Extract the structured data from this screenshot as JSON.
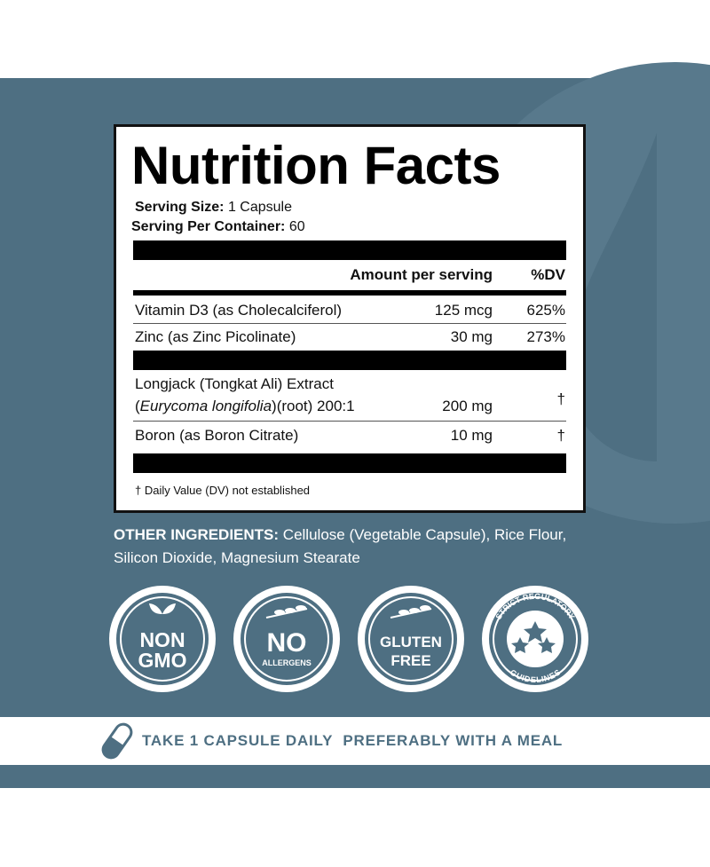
{
  "label": {
    "title": "Nutrition Facts",
    "serving_size_label": "Serving Size:",
    "serving_size": "1 Capsule",
    "servings_label": "Serving Per Container:",
    "servings": "60",
    "header_amount": "Amount per serving",
    "header_dv": "%DV",
    "rows": [
      {
        "name": "Vitamin D3 (as Cholecalciferol)",
        "amount": "125 mcg",
        "dv": "625%"
      },
      {
        "name": "Zinc (as Zinc Picolinate)",
        "amount": "30 mg",
        "dv": "273%"
      }
    ],
    "extract": {
      "name_line1": "Longjack (Tongkat Ali) Extract",
      "name_open": "(",
      "name_italic": "Eurycoma longifolia",
      "name_rest": ")(root) 200:1",
      "amount": "200 mg",
      "dv": "†"
    },
    "boron": {
      "name": "Boron (as Boron Citrate)",
      "amount": "10 mg",
      "dv": "†"
    },
    "footnote": "† Daily Value (DV) not established"
  },
  "other_ingredients": {
    "label": "OTHER INGREDIENTS:",
    "text": "Cellulose (Vegetable Capsule), Rice Flour, Silicon Dioxide, Magnesium Stearate"
  },
  "badges": [
    {
      "line1": "NON",
      "line2": "GMO"
    },
    {
      "line1": "NO",
      "line2": "ALLERGENS"
    },
    {
      "line1": "GLUTEN",
      "line2": "FREE"
    },
    {
      "line1": "STRICT REGULATORY",
      "line2": "GUIDELINES"
    }
  ],
  "footer": {
    "part1": "TAKE 1 CAPSULE DAILY",
    "part2": "PREFERABLY WITH A MEAL"
  }
}
